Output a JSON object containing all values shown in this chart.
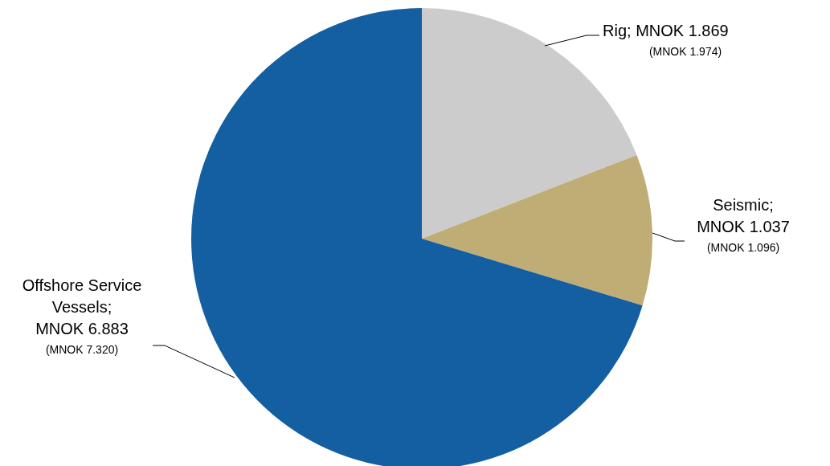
{
  "chart_data": {
    "type": "pie",
    "categories": [
      "Rig",
      "Seismic",
      "Offshore Service Vessels"
    ],
    "values": [
      1.869,
      1.037,
      6.883
    ],
    "colors": [
      "#cccccc",
      "#c0ad75",
      "#135fa1"
    ],
    "value_labels": [
      "; MNOK  1.869",
      "; MNOK  1.037",
      "; MNOK  6.883"
    ],
    "annotations": [
      "(MNOK 1.974)",
      "(MNOK 1.096)",
      "(MNOK 7.320)"
    ]
  }
}
